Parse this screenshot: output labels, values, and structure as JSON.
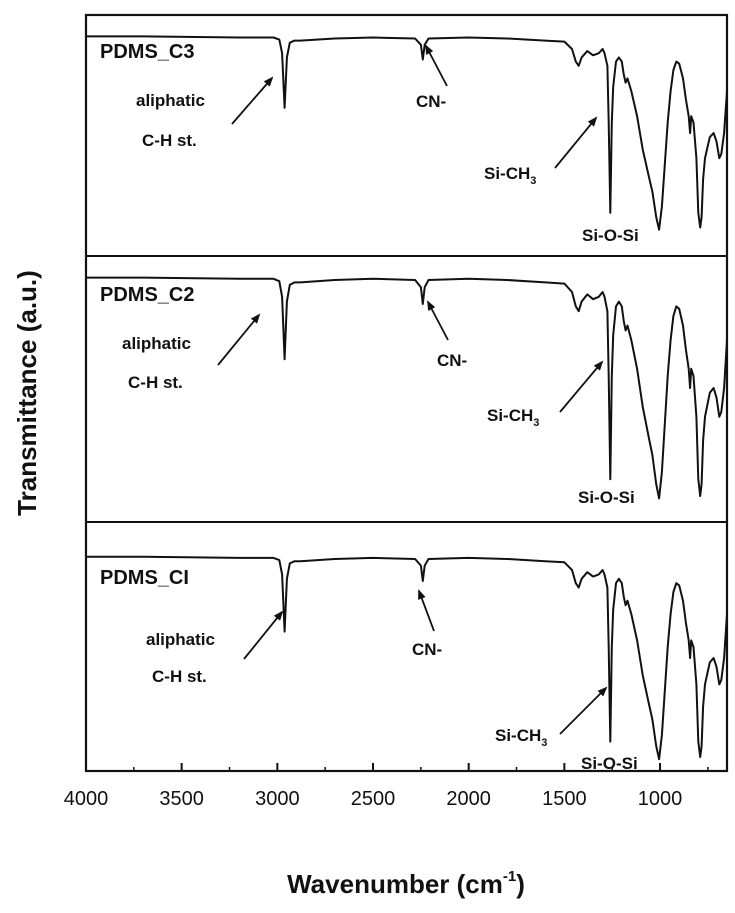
{
  "chart_data": {
    "type": "line",
    "xlabel": "Wavenumber (cm",
    "xlabel_sup": "-1",
    "xlabel_close": ")",
    "ylabel": "Transmittance (a.u.)",
    "xlim": [
      4000,
      650
    ],
    "x_reversed": true,
    "x_ticks": [
      4000,
      3500,
      3000,
      2500,
      2000,
      1500,
      1000
    ],
    "grid": false,
    "legend": "none",
    "line_color": "#111111",
    "panels": [
      {
        "name": "PDMS_C3",
        "annotations": [
          {
            "id": "aliphatic",
            "line1": "aliphatic",
            "line2": "C-H st.",
            "x": 2962
          },
          {
            "id": "cn",
            "text": "CN-",
            "x": 2240
          },
          {
            "id": "sich3",
            "text": "Si-CH",
            "sub": "3",
            "x": 1260
          },
          {
            "id": "siosi",
            "text": "Si-O-Si",
            "x": 1010
          }
        ]
      },
      {
        "name": "PDMS_C2",
        "annotations": [
          {
            "id": "aliphatic",
            "line1": "aliphatic",
            "line2": "C-H st.",
            "x": 2962
          },
          {
            "id": "cn",
            "text": "CN-",
            "x": 2240
          },
          {
            "id": "sich3",
            "text": "Si-CH",
            "sub": "3",
            "x": 1260
          },
          {
            "id": "siosi",
            "text": "Si-O-Si",
            "x": 1010
          }
        ]
      },
      {
        "name": "PDMS_CI",
        "annotations": [
          {
            "id": "aliphatic",
            "line1": "aliphatic",
            "line2": "C-H st.",
            "x": 2962
          },
          {
            "id": "cn",
            "text": "CN-",
            "x": 2240
          },
          {
            "id": "sich3",
            "text": "Si-CH",
            "sub": "3",
            "x": 1260
          },
          {
            "id": "siosi",
            "text": "Si-O-Si",
            "x": 1010
          }
        ]
      }
    ],
    "spectrum_shape": [
      [
        4000,
        0.96
      ],
      [
        3700,
        0.96
      ],
      [
        3200,
        0.955
      ],
      [
        3020,
        0.955
      ],
      [
        2990,
        0.945
      ],
      [
        2975,
        0.88
      ],
      [
        2962,
        0.62
      ],
      [
        2950,
        0.86
      ],
      [
        2935,
        0.93
      ],
      [
        2910,
        0.94
      ],
      [
        2880,
        0.94
      ],
      [
        2700,
        0.95
      ],
      [
        2500,
        0.955
      ],
      [
        2280,
        0.95
      ],
      [
        2250,
        0.92
      ],
      [
        2240,
        0.85
      ],
      [
        2230,
        0.92
      ],
      [
        2210,
        0.95
      ],
      [
        2000,
        0.955
      ],
      [
        1800,
        0.95
      ],
      [
        1600,
        0.94
      ],
      [
        1500,
        0.935
      ],
      [
        1460,
        0.9
      ],
      [
        1440,
        0.84
      ],
      [
        1425,
        0.82
      ],
      [
        1410,
        0.86
      ],
      [
        1380,
        0.89
      ],
      [
        1350,
        0.87
      ],
      [
        1320,
        0.88
      ],
      [
        1300,
        0.9
      ],
      [
        1290,
        0.88
      ],
      [
        1275,
        0.82
      ],
      [
        1268,
        0.55
      ],
      [
        1260,
        0.12
      ],
      [
        1252,
        0.55
      ],
      [
        1245,
        0.72
      ],
      [
        1230,
        0.84
      ],
      [
        1215,
        0.86
      ],
      [
        1200,
        0.84
      ],
      [
        1190,
        0.78
      ],
      [
        1180,
        0.74
      ],
      [
        1170,
        0.76
      ],
      [
        1150,
        0.7
      ],
      [
        1120,
        0.58
      ],
      [
        1090,
        0.42
      ],
      [
        1060,
        0.3
      ],
      [
        1040,
        0.22
      ],
      [
        1020,
        0.1
      ],
      [
        1005,
        0.04
      ],
      [
        990,
        0.15
      ],
      [
        975,
        0.35
      ],
      [
        960,
        0.55
      ],
      [
        945,
        0.7
      ],
      [
        930,
        0.8
      ],
      [
        915,
        0.84
      ],
      [
        900,
        0.83
      ],
      [
        880,
        0.76
      ],
      [
        865,
        0.66
      ],
      [
        850,
        0.58
      ],
      [
        843,
        0.5
      ],
      [
        837,
        0.58
      ],
      [
        825,
        0.55
      ],
      [
        810,
        0.38
      ],
      [
        800,
        0.12
      ],
      [
        790,
        0.05
      ],
      [
        783,
        0.1
      ],
      [
        775,
        0.28
      ],
      [
        765,
        0.38
      ],
      [
        755,
        0.42
      ],
      [
        740,
        0.48
      ],
      [
        720,
        0.5
      ],
      [
        705,
        0.46
      ],
      [
        690,
        0.38
      ],
      [
        680,
        0.4
      ],
      [
        665,
        0.5
      ],
      [
        650,
        0.7
      ]
    ]
  }
}
